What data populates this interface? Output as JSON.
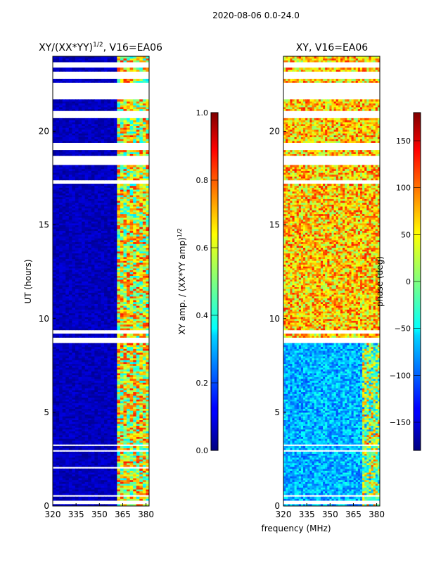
{
  "figure": {
    "suptitle": "2020-08-06 0.0-24.0",
    "xlabel_common": "frequency (MHz)"
  },
  "chart_data": [
    {
      "type": "heatmap",
      "title_main": "XY/(XX*YY)",
      "title_sup": "1/2",
      "title_tail": ", V16=EA06",
      "xlabel": "frequency (MHz)",
      "ylabel": "UT (hours)",
      "xlim": [
        320,
        382
      ],
      "ylim": [
        0,
        24
      ],
      "xticks": [
        320,
        335,
        350,
        365,
        380
      ],
      "yticks": [
        0,
        5,
        10,
        15,
        20
      ],
      "colorbar": {
        "label_main": "XY amp. / (XX*YY amp)",
        "label_sup": "1/2",
        "range": [
          0,
          1
        ],
        "ticks": [
          "0.0",
          "0.2",
          "0.4",
          "0.6",
          "0.8",
          "1.0"
        ],
        "tick_values": [
          0,
          0.2,
          0.4,
          0.6,
          0.8,
          1.0
        ],
        "colormap": "jet"
      },
      "active_band_mhz": [
        360,
        382
      ],
      "flagged_bands_ut": [
        [
          0.1,
          0.3
        ],
        [
          0.45,
          0.55
        ],
        [
          2.0,
          2.05
        ],
        [
          2.85,
          2.95
        ],
        [
          3.2,
          3.25
        ],
        [
          8.7,
          8.9
        ],
        [
          9.2,
          9.3
        ],
        [
          17.2,
          17.35
        ],
        [
          18.2,
          18.6
        ],
        [
          19.0,
          19.3
        ],
        [
          20.7,
          21.0
        ],
        [
          21.7,
          22.5
        ],
        [
          22.8,
          23.2
        ],
        [
          23.4,
          23.6
        ]
      ]
    },
    {
      "type": "heatmap",
      "title_main": "XY, V16=EA06",
      "xlabel": "frequency (MHz)",
      "ylabel": "",
      "xlim": [
        320,
        382
      ],
      "ylim": [
        0,
        24
      ],
      "xticks": [
        320,
        335,
        350,
        365,
        380
      ],
      "yticks": [
        0,
        5,
        10,
        15,
        20
      ],
      "colorbar": {
        "label_main": "phase (deg)",
        "range": [
          -180,
          180
        ],
        "ticks": [
          "−150",
          "−100",
          "−50",
          "0",
          "50",
          "100",
          "150"
        ],
        "tick_values": [
          -150,
          -100,
          -50,
          0,
          50,
          100,
          150
        ],
        "colormap": "jet"
      },
      "flagged_bands_ut": [
        [
          0.1,
          0.3
        ],
        [
          0.45,
          0.55
        ],
        [
          2.85,
          2.95
        ],
        [
          3.2,
          3.25
        ],
        [
          8.7,
          8.9
        ],
        [
          9.2,
          9.3
        ],
        [
          17.2,
          17.35
        ],
        [
          18.2,
          18.6
        ],
        [
          19.0,
          19.3
        ],
        [
          20.7,
          21.0
        ],
        [
          21.7,
          22.5
        ],
        [
          22.8,
          23.2
        ],
        [
          23.4,
          23.6
        ]
      ]
    }
  ]
}
